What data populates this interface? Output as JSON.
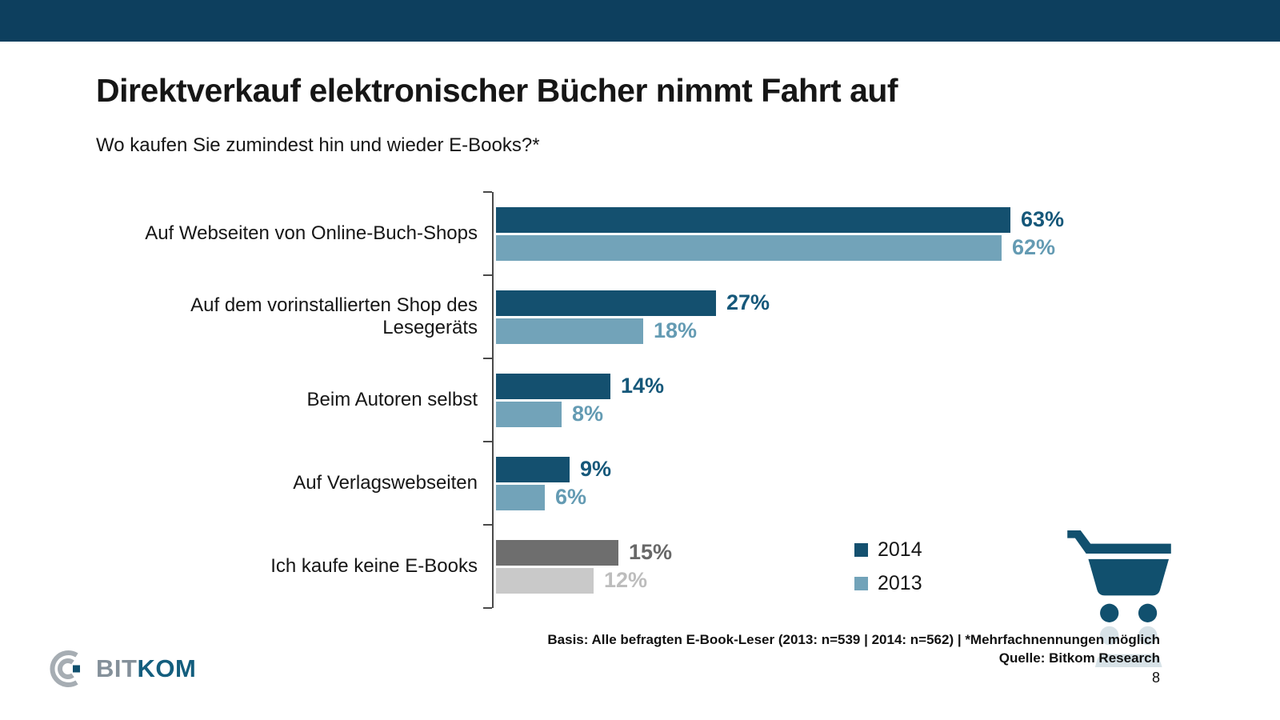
{
  "slide": {
    "title": "Direktverkauf elektronischer Bücher nimmt Fahrt auf",
    "subtitle": "Wo kaufen Sie zumindest hin und wieder E-Books?*",
    "footer_line1": "Basis: Alle befragten E-Book-Leser (2013: n=539 | 2014: n=562) | *Mehrfachnennungen möglich",
    "footer_line2": "Quelle: Bitkom Research",
    "page_number": "8",
    "logo_bit": "BIT",
    "logo_kom": "KOM"
  },
  "colors": {
    "top_bar": "#0d3f5e",
    "series": [
      {
        "bar": "#14506f",
        "label": "#16587a"
      },
      {
        "bar": "#72a3b9",
        "label": "#649bb3"
      }
    ],
    "gray_series": [
      {
        "bar": "#6e6e6e",
        "label": "#686868"
      },
      {
        "bar": "#c9c9c9",
        "label": "#bdbdbd"
      }
    ],
    "axis": "#4a4a4a",
    "cart_icon": "#11506e"
  },
  "chart_data": {
    "type": "bar",
    "orientation": "horizontal",
    "title": "Direktverkauf elektronischer Bücher nimmt Fahrt auf",
    "subtitle": "Wo kaufen Sie zumindest hin und wieder E-Books?*",
    "categories": [
      "Auf Webseiten von Online-Buch-Shops",
      "Auf dem vorinstallierten Shop des Lesegeräts",
      "Beim Autoren selbst",
      "Auf Verlagswebseiten",
      "Ich kaufe keine E-Books"
    ],
    "series": [
      {
        "name": "2014",
        "values": [
          63,
          27,
          14,
          9,
          15
        ]
      },
      {
        "name": "2013",
        "values": [
          62,
          18,
          8,
          6,
          12
        ]
      }
    ],
    "value_suffix": "%",
    "xlim": [
      0,
      65
    ],
    "gridlines": false,
    "legend_position": "bottom-right",
    "gray_category_index": 4
  }
}
